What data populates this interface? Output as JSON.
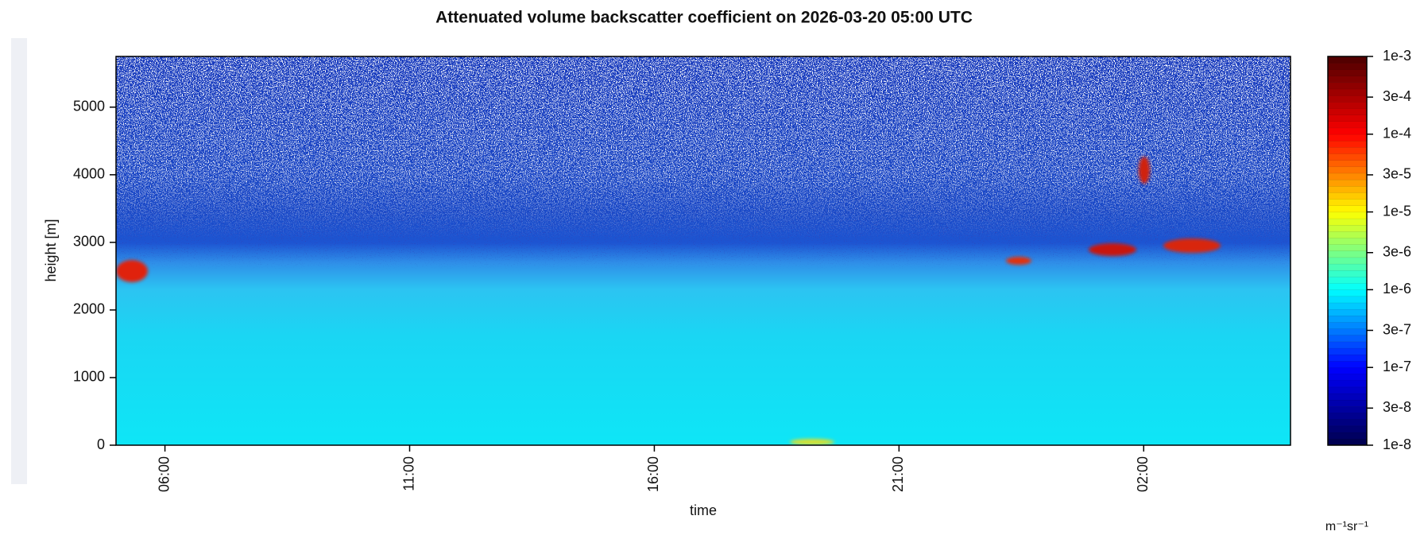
{
  "chart_data": {
    "type": "heatmap",
    "title": "Attenuated volume backscatter coefficient on 2026-03-20 05:00 UTC",
    "x_label": "time",
    "y_label": "height [m]",
    "xlim": [
      5,
      29
    ],
    "xticks": [
      {
        "value": 6,
        "label": "06:00"
      },
      {
        "value": 11,
        "label": "11:00"
      },
      {
        "value": 16,
        "label": "16:00"
      },
      {
        "value": 21,
        "label": "21:00"
      },
      {
        "value": 26,
        "label": "02:00"
      }
    ],
    "ylim": [
      0,
      5750
    ],
    "yticks": [
      0,
      1000,
      2000,
      3000,
      4000,
      5000
    ],
    "colorbar": {
      "label": "m⁻¹sr⁻¹",
      "scale": "log",
      "lim": [
        1e-08,
        0.001
      ],
      "colors": [
        "#00004c",
        "#0000ff",
        "#00ffff",
        "#ffff00",
        "#ff0000",
        "#4c0000"
      ],
      "ticks": [
        {
          "value": 1e-08,
          "label": "1e-8"
        },
        {
          "value": 3e-08,
          "label": "3e-8"
        },
        {
          "value": 1e-07,
          "label": "1e-7"
        },
        {
          "value": 3e-07,
          "label": "3e-7"
        },
        {
          "value": 1e-06,
          "label": "1e-6"
        },
        {
          "value": 3e-06,
          "label": "3e-6"
        },
        {
          "value": 1e-05,
          "label": "1e-5"
        },
        {
          "value": 3e-05,
          "label": "3e-5"
        },
        {
          "value": 0.0001,
          "label": "1e-4"
        },
        {
          "value": 0.0003,
          "label": "3e-4"
        },
        {
          "value": 0.001,
          "label": "1e-3"
        }
      ]
    }
  }
}
